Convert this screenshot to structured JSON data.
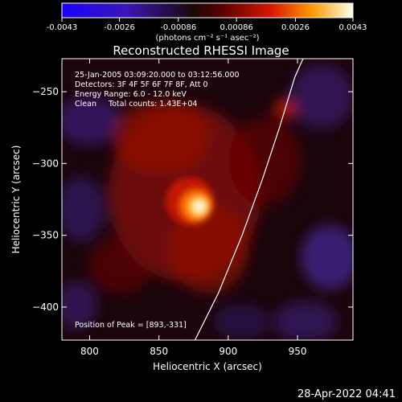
{
  "colorbar": {
    "ticks": [
      "-0.0043",
      "-0.0026",
      "-0.00086",
      "0.00086",
      "0.0026",
      "0.0043"
    ],
    "tick_values": [
      -0.0043,
      -0.0026,
      -0.00086,
      0.00086,
      0.0026,
      0.0043
    ],
    "range": [
      -0.0043,
      0.0043
    ],
    "unit_label": "(photons cm⁻² s⁻¹ asec⁻²)"
  },
  "chart_data": {
    "type": "heatmap",
    "title": "Reconstructed RHESSI Image",
    "xlabel": "Heliocentric X (arcsec)",
    "ylabel": "Heliocentric Y (arcsec)",
    "xlim": [
      780,
      990
    ],
    "ylim": [
      -423,
      -227
    ],
    "x_ticks": [
      800,
      850,
      900,
      950
    ],
    "y_ticks": [
      -250,
      -300,
      -350,
      -400
    ],
    "x_tick_labels": [
      "800",
      "850",
      "900",
      "950"
    ],
    "y_tick_labels": [
      "−250",
      "−300",
      "−350",
      "−400"
    ],
    "annotations": [
      "25-Jan-2005 03:09:20.000 to 03:12:56.000",
      "Detectors: 3F 4F 5F 6F 7F 8F, Att 0",
      "Energy Range: 6.0 - 12.0 keV",
      "Clean     Total counts: 1.43E+04"
    ],
    "peak_label": "Position of Peak = [893,-331]",
    "peak": [
      893,
      -331
    ],
    "limb_curve": [
      [
        876,
        -423
      ],
      [
        893,
        -390
      ],
      [
        910,
        -350
      ],
      [
        925,
        -310
      ],
      [
        937,
        -275
      ],
      [
        948,
        -240
      ],
      [
        954,
        -227
      ]
    ]
  },
  "timestamp": "28-Apr-2022 04:41"
}
